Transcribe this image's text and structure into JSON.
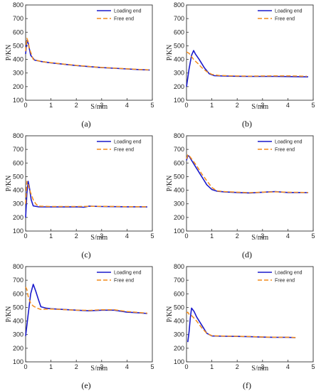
{
  "colors": {
    "loading": "#1a1acc",
    "free": "#f28c1c",
    "axis": "#333333"
  },
  "chart_data": [
    {
      "type": "line",
      "panel_label": "(a)",
      "xlabel": "S/mm",
      "ylabel": "P/KN",
      "xlim": [
        0,
        5
      ],
      "ylim": [
        100,
        800
      ],
      "xticks": [
        0,
        1,
        2,
        3,
        4,
        5
      ],
      "yticks": [
        100,
        200,
        300,
        400,
        500,
        600,
        700,
        800
      ],
      "legend_position": "top-right",
      "series": [
        {
          "name": "Loading end",
          "x": [
            0,
            0.05,
            0.1,
            0.2,
            0.35,
            0.6,
            1,
            1.5,
            2,
            2.5,
            3,
            3.5,
            4,
            4.5,
            4.9
          ],
          "y": [
            440,
            540,
            520,
            430,
            395,
            385,
            375,
            365,
            355,
            347,
            340,
            335,
            330,
            325,
            322
          ]
        },
        {
          "name": "Free end",
          "x": [
            0,
            0.05,
            0.1,
            0.15,
            0.3,
            0.6,
            1,
            1.5,
            2,
            2.5,
            3,
            3.5,
            4,
            4.5,
            4.85
          ],
          "y": [
            460,
            555,
            530,
            480,
            400,
            385,
            376,
            366,
            356,
            348,
            341,
            336,
            331,
            326,
            323
          ]
        }
      ]
    },
    {
      "type": "line",
      "panel_label": "(b)",
      "xlabel": "S/mm",
      "ylabel": "P/KN",
      "xlim": [
        0,
        5
      ],
      "ylim": [
        100,
        800
      ],
      "xticks": [
        0,
        1,
        2,
        3,
        4,
        5
      ],
      "yticks": [
        100,
        200,
        300,
        400,
        500,
        600,
        700,
        800
      ],
      "legend_position": "top-right",
      "series": [
        {
          "name": "Loading end",
          "x": [
            0,
            0.1,
            0.2,
            0.28,
            0.35,
            0.5,
            0.7,
            0.9,
            1.1,
            1.5,
            2,
            2.5,
            3,
            3.5,
            4,
            4.5,
            4.8
          ],
          "y": [
            200,
            330,
            430,
            465,
            440,
            400,
            340,
            295,
            280,
            278,
            276,
            275,
            275,
            275,
            274,
            273,
            272
          ]
        },
        {
          "name": "Free end",
          "x": [
            0,
            0.1,
            0.2,
            0.3,
            0.45,
            0.6,
            0.8,
            1,
            1.3,
            2,
            2.5,
            3,
            3.5,
            4,
            4.5,
            4.75
          ],
          "y": [
            455,
            445,
            420,
            395,
            370,
            340,
            310,
            290,
            282,
            278,
            277,
            278,
            279,
            279,
            277,
            276
          ]
        }
      ]
    },
    {
      "type": "line",
      "panel_label": "(c)",
      "xlabel": "S/mm",
      "ylabel": "P/KN",
      "xlim": [
        0,
        5
      ],
      "ylim": [
        100,
        800
      ],
      "xticks": [
        0,
        1,
        2,
        3,
        4,
        5
      ],
      "yticks": [
        100,
        200,
        300,
        400,
        500,
        600,
        700,
        800
      ],
      "legend_position": "top-right",
      "series": [
        {
          "name": "Loading end",
          "x": [
            0,
            0.05,
            0.1,
            0.15,
            0.22,
            0.3,
            0.5,
            1,
            1.5,
            2,
            2.3,
            2.5,
            3,
            3.5,
            4,
            4.5,
            4.8
          ],
          "y": [
            200,
            380,
            465,
            420,
            330,
            285,
            278,
            277,
            277,
            278,
            275,
            283,
            280,
            279,
            278,
            278,
            277
          ]
        },
        {
          "name": "Free end",
          "x": [
            0,
            0.05,
            0.1,
            0.2,
            0.3,
            0.4,
            0.5,
            1,
            1.5,
            2,
            2.5,
            3,
            3.5,
            4,
            4.5,
            4.8
          ],
          "y": [
            300,
            465,
            440,
            380,
            330,
            300,
            283,
            280,
            280,
            280,
            282,
            282,
            281,
            279,
            279,
            278
          ]
        }
      ]
    },
    {
      "type": "line",
      "panel_label": "(d)",
      "xlabel": "S/mm",
      "ylabel": "P/KN",
      "xlim": [
        0,
        5
      ],
      "ylim": [
        100,
        800
      ],
      "xticks": [
        0,
        1,
        2,
        3,
        4,
        5
      ],
      "yticks": [
        100,
        200,
        300,
        400,
        500,
        600,
        700,
        800
      ],
      "legend_position": "top-right",
      "series": [
        {
          "name": "Loading end",
          "x": [
            0,
            0.05,
            0.1,
            0.2,
            0.4,
            0.6,
            0.8,
            1,
            1.2,
            1.5,
            2,
            2.5,
            3,
            3.5,
            4,
            4.5,
            4.8
          ],
          "y": [
            620,
            655,
            650,
            620,
            560,
            500,
            440,
            405,
            393,
            388,
            383,
            380,
            385,
            390,
            383,
            383,
            382
          ]
        },
        {
          "name": "Free end",
          "x": [
            0,
            0.05,
            0.1,
            0.2,
            0.4,
            0.6,
            0.8,
            1,
            1.2,
            1.5,
            2,
            2.5,
            3,
            3.5,
            4,
            4.5,
            4.8
          ],
          "y": [
            630,
            660,
            655,
            630,
            580,
            520,
            470,
            420,
            395,
            390,
            385,
            382,
            386,
            388,
            385,
            384,
            383
          ]
        }
      ]
    },
    {
      "type": "line",
      "panel_label": "(e)",
      "xlabel": "S/mm",
      "ylabel": "P/KN",
      "xlim": [
        0,
        5
      ],
      "ylim": [
        100,
        800
      ],
      "xticks": [
        0,
        1,
        2,
        3,
        4,
        5
      ],
      "yticks": [
        100,
        200,
        300,
        400,
        500,
        600,
        700,
        800
      ],
      "legend_position": "top-right",
      "series": [
        {
          "name": "Loading end",
          "x": [
            0,
            0.1,
            0.2,
            0.3,
            0.4,
            0.5,
            0.6,
            0.8,
            1,
            1.5,
            2,
            2.5,
            3,
            3.5,
            4,
            4.5,
            4.8
          ],
          "y": [
            290,
            450,
            600,
            670,
            620,
            560,
            505,
            495,
            490,
            485,
            480,
            475,
            480,
            480,
            465,
            460,
            455
          ]
        },
        {
          "name": "Free end",
          "x": [
            0,
            0.05,
            0.1,
            0.2,
            0.3,
            0.45,
            0.6,
            0.8,
            1,
            1.5,
            2,
            2.5,
            3,
            3.5,
            4,
            4.5,
            4.8
          ],
          "y": [
            650,
            630,
            580,
            530,
            510,
            495,
            485,
            487,
            488,
            484,
            480,
            478,
            483,
            483,
            470,
            462,
            458
          ]
        }
      ]
    },
    {
      "type": "line",
      "panel_label": "(f)",
      "xlabel": "S/mm",
      "ylabel": "P/KN",
      "xlim": [
        0,
        5
      ],
      "ylim": [
        100,
        800
      ],
      "xticks": [
        0,
        1,
        2,
        3,
        4,
        5
      ],
      "yticks": [
        100,
        200,
        300,
        400,
        500,
        600,
        700,
        800
      ],
      "legend_position": "top-right",
      "series": [
        {
          "name": "Loading end",
          "x": [
            0.05,
            0.1,
            0.15,
            0.2,
            0.3,
            0.4,
            0.6,
            0.8,
            1,
            1.5,
            2,
            2.5,
            3,
            3.5,
            4,
            4.3
          ],
          "y": [
            245,
            320,
            420,
            495,
            470,
            430,
            370,
            310,
            290,
            288,
            287,
            285,
            282,
            280,
            280,
            278
          ]
        },
        {
          "name": "Free end",
          "x": [
            0,
            0.05,
            0.1,
            0.2,
            0.3,
            0.4,
            0.6,
            0.8,
            1,
            1.5,
            2,
            2.5,
            3,
            3.5,
            4,
            4.3
          ],
          "y": [
            460,
            465,
            450,
            440,
            420,
            400,
            350,
            310,
            292,
            289,
            288,
            286,
            283,
            281,
            281,
            279
          ]
        }
      ]
    }
  ]
}
